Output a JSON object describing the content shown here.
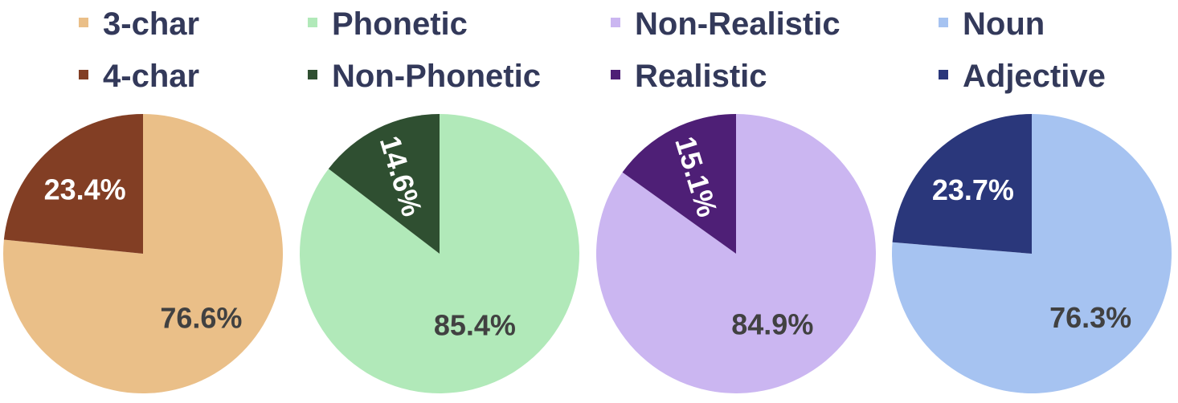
{
  "chart_data": [
    {
      "type": "pie",
      "slices": [
        {
          "label": "3-char",
          "value": 76.6,
          "data_label": "76.6%",
          "color": "#eabf88"
        },
        {
          "label": "4-char",
          "value": 23.4,
          "data_label": "23.4%",
          "color": "#823e24"
        }
      ]
    },
    {
      "type": "pie",
      "slices": [
        {
          "label": "Phonetic",
          "value": 85.4,
          "data_label": "85.4%",
          "color": "#b1e9b9"
        },
        {
          "label": "Non-Phonetic",
          "value": 14.6,
          "data_label": "14.6%",
          "color": "#2f4f31"
        }
      ]
    },
    {
      "type": "pie",
      "slices": [
        {
          "label": "Non-Realistic",
          "value": 84.9,
          "data_label": "84.9%",
          "color": "#cbb6f1"
        },
        {
          "label": "Realistic",
          "value": 15.1,
          "data_label": "15.1%",
          "color": "#4e1f76"
        }
      ]
    },
    {
      "type": "pie",
      "slices": [
        {
          "label": "Noun",
          "value": 76.3,
          "data_label": "76.3%",
          "color": "#a6c3f1"
        },
        {
          "label": "Adjective",
          "value": 23.7,
          "data_label": "23.7%",
          "color": "#2a377b"
        }
      ]
    }
  ],
  "text_colors": {
    "legend": "#33395a",
    "inside_light": "#414141",
    "inside_dark": "#ffffff"
  }
}
